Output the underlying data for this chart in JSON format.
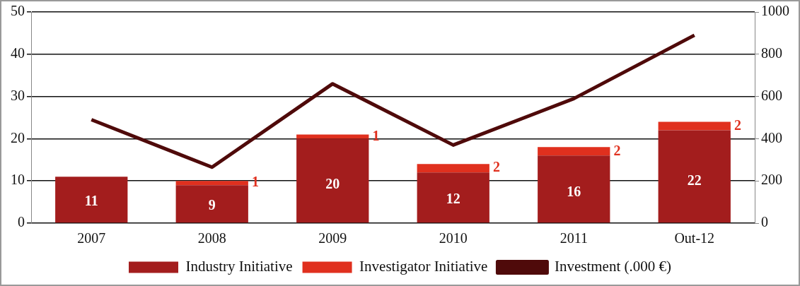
{
  "chart_data": {
    "type": "bar",
    "stacked": true,
    "categories": [
      "2007",
      "2008",
      "2009",
      "2010",
      "2011",
      "Out-12"
    ],
    "series": [
      {
        "name": "Industry Initiative",
        "color": "#a31d1d",
        "values": [
          11,
          9,
          20,
          12,
          16,
          22
        ],
        "value_labels": [
          "11",
          "9",
          "20",
          "12",
          "16",
          "22"
        ]
      },
      {
        "name": "Investigator Initiative",
        "color": "#e0301e",
        "values": [
          0,
          1,
          1,
          2,
          2,
          2
        ],
        "value_labels": [
          null,
          "1",
          "1",
          "2",
          "2",
          "2"
        ]
      },
      {
        "name": "Investment (.000 €)",
        "type": "line",
        "axis": "y2",
        "color": "#4f0a0a",
        "values": [
          490,
          265,
          660,
          370,
          590,
          890
        ]
      }
    ],
    "ylim": [
      0,
      50
    ],
    "yticks": [
      0,
      10,
      20,
      30,
      40,
      50
    ],
    "y2lim": [
      0,
      1000
    ],
    "y2ticks": [
      0,
      200,
      400,
      600,
      800,
      1000
    ],
    "grid": "y",
    "legend": "bottom",
    "marker": "none"
  }
}
